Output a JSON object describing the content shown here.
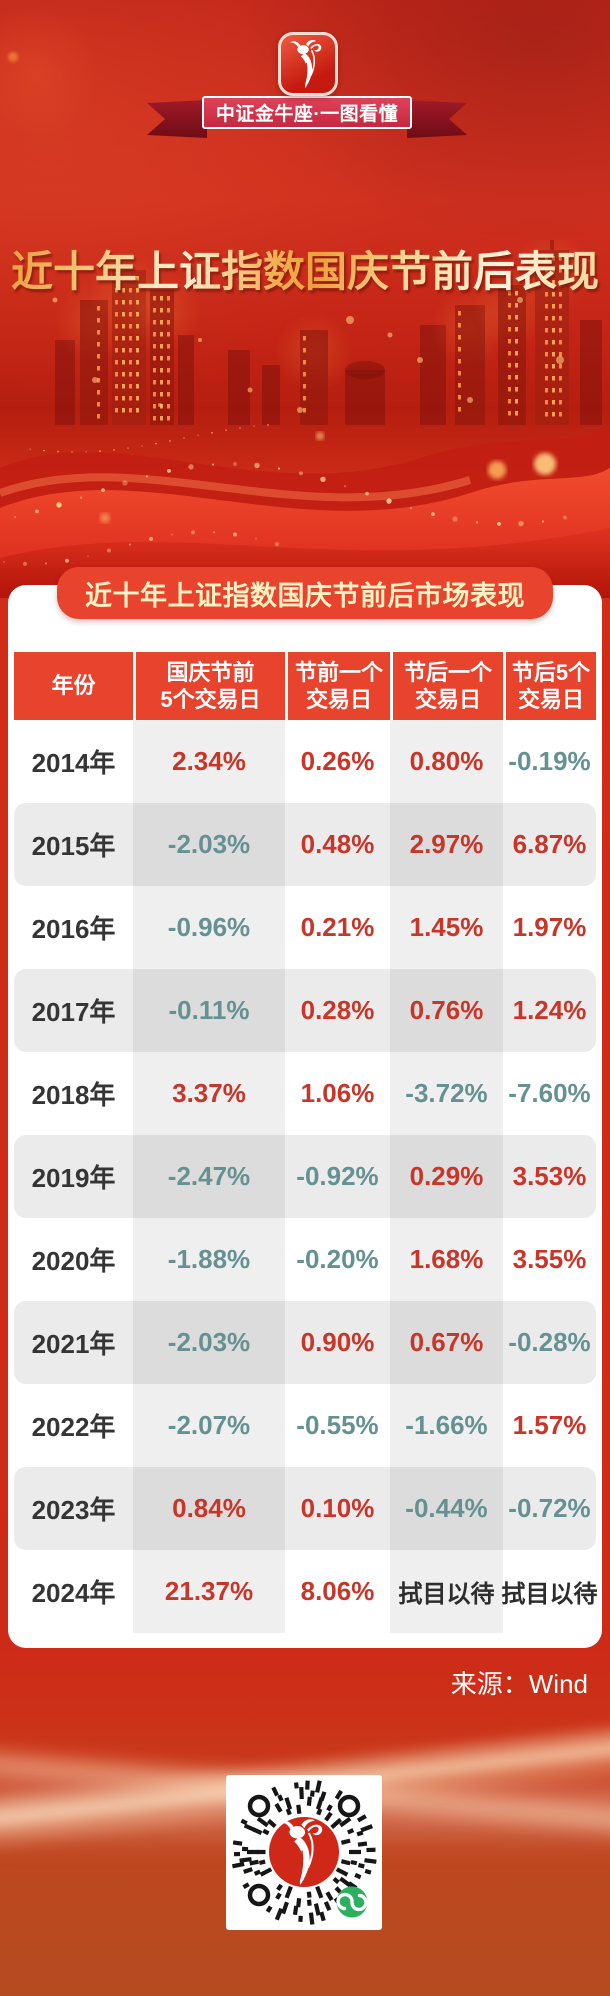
{
  "header": {
    "ribbon_text": "中证金牛座·一图看懂",
    "title": "近十年上证指数国庆节前后表现"
  },
  "card": {
    "badge_title": "近十年上证指数国庆节前后市场表现",
    "table": {
      "columns": [
        {
          "line1": "年份",
          "line2": ""
        },
        {
          "line1": "国庆节前",
          "line2": "5个交易日"
        },
        {
          "line1": "节前一个",
          "line2": "交易日"
        },
        {
          "line1": "节后一个",
          "line2": "交易日"
        },
        {
          "line1": "节后5个",
          "line2": "交易日"
        }
      ],
      "rows": [
        {
          "year": "2014年",
          "values": [
            {
              "text": "2.34%",
              "tone": "up"
            },
            {
              "text": "0.26%",
              "tone": "up"
            },
            {
              "text": "0.80%",
              "tone": "up"
            },
            {
              "text": "-0.19%",
              "tone": "down"
            }
          ]
        },
        {
          "year": "2015年",
          "values": [
            {
              "text": "-2.03%",
              "tone": "down"
            },
            {
              "text": "0.48%",
              "tone": "up"
            },
            {
              "text": "2.97%",
              "tone": "up"
            },
            {
              "text": "6.87%",
              "tone": "up"
            }
          ]
        },
        {
          "year": "2016年",
          "values": [
            {
              "text": "-0.96%",
              "tone": "down"
            },
            {
              "text": "0.21%",
              "tone": "up"
            },
            {
              "text": "1.45%",
              "tone": "up"
            },
            {
              "text": "1.97%",
              "tone": "up"
            }
          ]
        },
        {
          "year": "2017年",
          "values": [
            {
              "text": "-0.11%",
              "tone": "down"
            },
            {
              "text": "0.28%",
              "tone": "up"
            },
            {
              "text": "0.76%",
              "tone": "up"
            },
            {
              "text": "1.24%",
              "tone": "up"
            }
          ]
        },
        {
          "year": "2018年",
          "values": [
            {
              "text": "3.37%",
              "tone": "up"
            },
            {
              "text": "1.06%",
              "tone": "up"
            },
            {
              "text": "-3.72%",
              "tone": "down"
            },
            {
              "text": "-7.60%",
              "tone": "down"
            }
          ]
        },
        {
          "year": "2019年",
          "values": [
            {
              "text": "-2.47%",
              "tone": "down"
            },
            {
              "text": "-0.92%",
              "tone": "down"
            },
            {
              "text": "0.29%",
              "tone": "up"
            },
            {
              "text": "3.53%",
              "tone": "up"
            }
          ]
        },
        {
          "year": "2020年",
          "values": [
            {
              "text": "-1.88%",
              "tone": "down"
            },
            {
              "text": "-0.20%",
              "tone": "down"
            },
            {
              "text": "1.68%",
              "tone": "up"
            },
            {
              "text": "3.55%",
              "tone": "up"
            }
          ]
        },
        {
          "year": "2021年",
          "values": [
            {
              "text": "-2.03%",
              "tone": "down"
            },
            {
              "text": "0.90%",
              "tone": "up"
            },
            {
              "text": "0.67%",
              "tone": "up"
            },
            {
              "text": "-0.28%",
              "tone": "down"
            }
          ]
        },
        {
          "year": "2022年",
          "values": [
            {
              "text": "-2.07%",
              "tone": "down"
            },
            {
              "text": "-0.55%",
              "tone": "down"
            },
            {
              "text": "-1.66%",
              "tone": "down"
            },
            {
              "text": "1.57%",
              "tone": "up"
            }
          ]
        },
        {
          "year": "2023年",
          "values": [
            {
              "text": "0.84%",
              "tone": "up"
            },
            {
              "text": "0.10%",
              "tone": "up"
            },
            {
              "text": "-0.44%",
              "tone": "down"
            },
            {
              "text": "-0.72%",
              "tone": "down"
            }
          ]
        },
        {
          "year": "2024年",
          "values": [
            {
              "text": "21.37%",
              "tone": "up"
            },
            {
              "text": "8.06%",
              "tone": "up"
            },
            {
              "text": "拭目以待",
              "tone": "pending"
            },
            {
              "text": "拭目以待",
              "tone": "pending"
            }
          ]
        }
      ]
    }
  },
  "source": {
    "text": "来源：Wind"
  },
  "icons": {
    "logo": "bull-icon",
    "qr_center": "bull-icon",
    "qr_corner": "wechat-mini-program-icon"
  },
  "colors": {
    "background_red": "#cd2b18",
    "accent_red": "#e8432d",
    "positive_red": "#c8362a",
    "negative_teal": "#669192",
    "badge_text_yellow": "#fcf1c2",
    "title_gold": "#f3c377",
    "wechat_green": "#2bb05f"
  },
  "chart_data": {
    "type": "table",
    "title": "近十年上证指数国庆节前后市场表现",
    "poster_title": "近十年上证指数国庆节前后表现",
    "columns": [
      "年份",
      "国庆节前5个交易日",
      "节前一个交易日",
      "节后一个交易日",
      "节后5个交易日"
    ],
    "rows": [
      [
        "2014年",
        "2.34%",
        "0.26%",
        "0.80%",
        "-0.19%"
      ],
      [
        "2015年",
        "-2.03%",
        "0.48%",
        "2.97%",
        "6.87%"
      ],
      [
        "2016年",
        "-0.96%",
        "0.21%",
        "1.45%",
        "1.97%"
      ],
      [
        "2017年",
        "-0.11%",
        "0.28%",
        "0.76%",
        "1.24%"
      ],
      [
        "2018年",
        "3.37%",
        "1.06%",
        "-3.72%",
        "-7.60%"
      ],
      [
        "2019年",
        "-2.47%",
        "-0.92%",
        "0.29%",
        "3.53%"
      ],
      [
        "2020年",
        "-1.88%",
        "-0.20%",
        "1.68%",
        "3.55%"
      ],
      [
        "2021年",
        "-2.03%",
        "0.90%",
        "0.67%",
        "-0.28%"
      ],
      [
        "2022年",
        "-2.07%",
        "-0.55%",
        "-1.66%",
        "1.57%"
      ],
      [
        "2023年",
        "0.84%",
        "0.10%",
        "-0.44%",
        "-0.72%"
      ],
      [
        "2024年",
        "21.37%",
        "8.06%",
        "拭目以待",
        "拭目以待"
      ]
    ],
    "value_color_rule": "positive=red, negative=teal, pending=dark",
    "source": "来源：Wind"
  }
}
